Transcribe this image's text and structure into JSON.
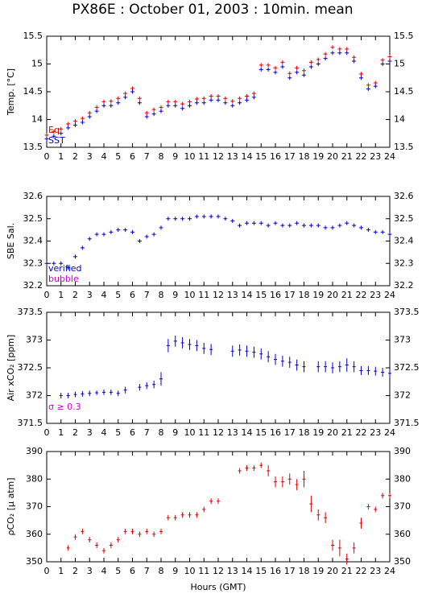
{
  "chart_data": [
    {
      "type": "scatter",
      "title": "PX86E : October 01, 2003 : 10min. mean",
      "ylabel": "Temp. [°C]",
      "x": [
        0,
        0.5,
        1,
        1.5,
        2,
        2.5,
        3,
        3.5,
        4,
        4.5,
        5,
        5.5,
        6,
        6.5,
        7,
        7.5,
        8,
        8.5,
        9,
        9.5,
        10,
        10.5,
        11,
        11.5,
        12,
        12.5,
        13,
        13.5,
        14,
        14.5,
        15,
        15.5,
        16,
        16.5,
        17,
        17.5,
        18,
        18.5,
        19,
        19.5,
        20,
        20.5,
        21,
        21.5,
        22,
        22.5,
        23,
        23.5,
        24
      ],
      "xlim": [
        0,
        24
      ],
      "xticks": [
        0,
        1,
        2,
        3,
        4,
        5,
        6,
        7,
        8,
        9,
        10,
        11,
        12,
        13,
        14,
        15,
        16,
        17,
        18,
        19,
        20,
        21,
        22,
        23,
        24
      ],
      "ylim": [
        13.5,
        15.5
      ],
      "yticks": [
        13.5,
        14,
        14.5,
        15,
        15.5
      ],
      "series": [
        {
          "name": "Eq",
          "color": "#dd0000",
          "values": [
            13.72,
            13.78,
            13.83,
            13.92,
            13.97,
            14.02,
            14.12,
            14.22,
            14.32,
            14.33,
            14.38,
            14.47,
            14.56,
            14.38,
            14.12,
            14.18,
            14.22,
            14.32,
            14.32,
            14.28,
            14.32,
            14.37,
            14.38,
            14.42,
            14.42,
            14.38,
            14.33,
            14.38,
            14.42,
            14.47,
            14.98,
            14.98,
            14.93,
            15.03,
            14.83,
            14.93,
            14.88,
            15.03,
            15.08,
            15.18,
            15.3,
            15.27,
            15.27,
            15.12,
            14.82,
            14.62,
            14.66,
            15.07,
            15.13
          ]
        },
        {
          "name": "SST",
          "color": "#0000cc",
          "values": [
            13.65,
            13.7,
            13.75,
            13.85,
            13.9,
            13.95,
            14.05,
            14.15,
            14.25,
            14.25,
            14.3,
            14.4,
            14.5,
            14.3,
            14.05,
            14.1,
            14.15,
            14.25,
            14.25,
            14.2,
            14.25,
            14.3,
            14.3,
            14.35,
            14.35,
            14.3,
            14.25,
            14.3,
            14.35,
            14.4,
            14.9,
            14.9,
            14.85,
            14.95,
            14.75,
            14.85,
            14.8,
            14.95,
            15.0,
            15.1,
            15.2,
            15.2,
            15.2,
            15.05,
            14.75,
            14.55,
            14.6,
            15.0,
            15.05
          ]
        }
      ]
    },
    {
      "type": "scatter",
      "ylabel": "SBE Sal.",
      "x": [
        0,
        0.5,
        1,
        1.5,
        2,
        2.5,
        3,
        3.5,
        4,
        4.5,
        5,
        5.5,
        6,
        6.5,
        7,
        7.5,
        8,
        8.5,
        9,
        9.5,
        10,
        10.5,
        11,
        11.5,
        12,
        12.5,
        13,
        13.5,
        14,
        14.5,
        15,
        15.5,
        16,
        16.5,
        17,
        17.5,
        18,
        18.5,
        19,
        19.5,
        20,
        20.5,
        21,
        21.5,
        22,
        22.5,
        23,
        23.5,
        24
      ],
      "xlim": [
        0,
        24
      ],
      "xticks": [
        0,
        1,
        2,
        3,
        4,
        5,
        6,
        7,
        8,
        9,
        10,
        11,
        12,
        13,
        14,
        15,
        16,
        17,
        18,
        19,
        20,
        21,
        22,
        23,
        24
      ],
      "ylim": [
        32.2,
        32.6
      ],
      "yticks": [
        32.2,
        32.3,
        32.4,
        32.5,
        32.6
      ],
      "series": [
        {
          "name": "verified",
          "color": "#0000cc",
          "values": [
            32.3,
            32.3,
            32.3,
            32.28,
            32.33,
            32.37,
            32.41,
            32.43,
            32.43,
            32.44,
            32.45,
            32.45,
            32.44,
            32.4,
            32.42,
            32.43,
            32.46,
            32.5,
            32.5,
            32.5,
            32.5,
            32.51,
            32.51,
            32.51,
            32.51,
            32.5,
            32.49,
            32.47,
            32.48,
            32.48,
            32.48,
            32.47,
            32.48,
            32.47,
            32.47,
            32.48,
            32.47,
            32.47,
            32.47,
            32.46,
            32.46,
            32.47,
            32.48,
            32.47,
            32.46,
            32.45,
            32.44,
            32.44,
            32.43
          ]
        }
      ],
      "legend": [
        {
          "name": "bubble",
          "color": "#cc00cc"
        }
      ]
    },
    {
      "type": "scatter",
      "ylabel": "Air xCO₂ [ppm]",
      "annotation": {
        "text": "σ ≥ 0.3",
        "color": "#cc00cc"
      },
      "x": [
        0,
        0.5,
        1,
        1.5,
        2,
        2.5,
        3,
        3.5,
        4,
        4.5,
        5,
        5.5,
        6,
        6.5,
        7,
        7.5,
        8,
        8.5,
        9,
        9.5,
        10,
        10.5,
        11,
        11.5,
        12,
        12.5,
        13,
        13.5,
        14,
        14.5,
        15,
        15.5,
        16,
        16.5,
        17,
        17.5,
        18,
        18.5,
        19,
        19.5,
        20,
        20.5,
        21,
        21.5,
        22,
        22.5,
        23,
        23.5,
        24
      ],
      "xlim": [
        0,
        24
      ],
      "xticks": [
        0,
        1,
        2,
        3,
        4,
        5,
        6,
        7,
        8,
        9,
        10,
        11,
        12,
        13,
        14,
        15,
        16,
        17,
        18,
        19,
        20,
        21,
        22,
        23,
        24
      ],
      "ylim": [
        371.5,
        373.5
      ],
      "yticks": [
        371.5,
        372,
        372.5,
        373,
        373.5
      ],
      "series": [
        {
          "color": "#0000cc",
          "values": [
            null,
            null,
            372.0,
            372.0,
            372.02,
            372.03,
            372.04,
            372.05,
            372.06,
            372.06,
            372.04,
            372.1,
            null,
            372.15,
            372.18,
            372.2,
            372.3,
            372.9,
            372.98,
            372.95,
            372.92,
            372.9,
            372.85,
            372.83,
            null,
            null,
            372.8,
            372.82,
            372.8,
            372.78,
            372.75,
            372.7,
            372.65,
            372.62,
            372.6,
            372.55,
            372.52,
            null,
            372.52,
            372.52,
            372.5,
            372.52,
            372.55,
            372.52,
            372.45,
            372.45,
            372.44,
            372.42,
            372.4
          ],
          "errors": [
            null,
            null,
            0.05,
            0.05,
            0.05,
            0.05,
            0.05,
            0.04,
            0.05,
            0.05,
            0.05,
            0.06,
            null,
            0.06,
            0.06,
            0.07,
            0.12,
            0.12,
            0.1,
            0.1,
            0.1,
            0.1,
            0.1,
            0.1,
            null,
            null,
            0.1,
            0.1,
            0.1,
            0.1,
            0.1,
            0.1,
            0.1,
            0.1,
            0.1,
            0.1,
            0.1,
            null,
            0.1,
            0.1,
            0.1,
            0.1,
            0.12,
            0.1,
            0.08,
            0.08,
            0.08,
            0.08,
            0.08
          ]
        }
      ]
    },
    {
      "type": "scatter",
      "ylabel": "ρCO₂ [μ atm]",
      "xlabel": "Hours (GMT)",
      "x": [
        0,
        0.5,
        1,
        1.5,
        2,
        2.5,
        3,
        3.5,
        4,
        4.5,
        5,
        5.5,
        6,
        6.5,
        7,
        7.5,
        8,
        8.5,
        9,
        9.5,
        10,
        10.5,
        11,
        11.5,
        12,
        12.5,
        13,
        13.5,
        14,
        14.5,
        15,
        15.5,
        16,
        16.5,
        17,
        17.5,
        18,
        18.5,
        19,
        19.5,
        20,
        20.5,
        21,
        21.5,
        22,
        22.5,
        23,
        23.5,
        24
      ],
      "xlim": [
        0,
        24
      ],
      "xticks": [
        0,
        1,
        2,
        3,
        4,
        5,
        6,
        7,
        8,
        9,
        10,
        11,
        12,
        13,
        14,
        15,
        16,
        17,
        18,
        19,
        20,
        21,
        22,
        23,
        24
      ],
      "ylim": [
        350,
        390
      ],
      "yticks": [
        350,
        360,
        370,
        380,
        390
      ],
      "series": [
        {
          "color": "#dd0000",
          "values": [
            null,
            null,
            null,
            355,
            359,
            361,
            358,
            356,
            354,
            356,
            358,
            361,
            361,
            360,
            361,
            360,
            361,
            366,
            366,
            367,
            367,
            367,
            369,
            372,
            372,
            null,
            null,
            383,
            384,
            384,
            385,
            383,
            379,
            379,
            380,
            378,
            380,
            371,
            367,
            366,
            356,
            355,
            351,
            355,
            364,
            370,
            369,
            374,
            374
          ],
          "errors": [
            null,
            null,
            null,
            1,
            1,
            1,
            1,
            1,
            1,
            1,
            1,
            1,
            1,
            1,
            1,
            1,
            1,
            1,
            1,
            1,
            1,
            1,
            1,
            1,
            1,
            null,
            null,
            1,
            1,
            1,
            1,
            2,
            2,
            2,
            2,
            2,
            3,
            3,
            2,
            2,
            2,
            3,
            2,
            2,
            2,
            1,
            1,
            1,
            1
          ]
        }
      ]
    }
  ]
}
